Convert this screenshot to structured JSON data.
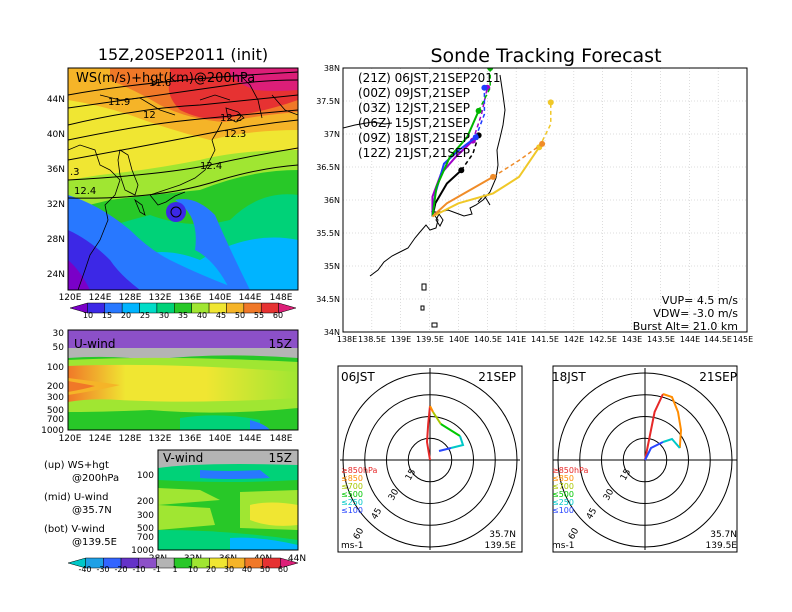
{
  "colors": {
    "ws_scale": [
      "#7a00c8",
      "#3c28e6",
      "#2878ff",
      "#00b4ff",
      "#00dcc8",
      "#00d278",
      "#28c828",
      "#a0e632",
      "#f0e632",
      "#f5b428",
      "#f07828",
      "#e63232",
      "#dc1e78"
    ],
    "u_scale": [
      "#00c8c8",
      "#1ea0e6",
      "#3264ff",
      "#6432c8",
      "#8c50c8",
      "#b4b4b4",
      "#28c828",
      "#a0e632",
      "#f0e632",
      "#f5b428",
      "#f07828",
      "#e63232",
      "#dc1e78"
    ],
    "wind_low": "#e62828",
    "wind_850": "#ff8c00",
    "wind_700": "#a8c800",
    "wind_500": "#00c800",
    "wind_250": "#00c8c8",
    "wind_100": "#2846ff"
  },
  "top_left": {
    "title": "15Z,20SEP2011 (init)",
    "label": "WS(m/s)+hgt(km)@200hPa",
    "contours": [
      "11.9",
      "11.6",
      "12",
      "12.2",
      "12.3",
      "12.4",
      "12.4",
      ".3"
    ],
    "lat_labels": [
      "44N",
      "40N",
      "36N",
      "32N",
      "28N",
      "24N"
    ],
    "lon_labels": [
      "120E",
      "124E",
      "128E",
      "132E",
      "136E",
      "140E",
      "144E",
      "148E"
    ],
    "colorbar_labels": [
      "10",
      "15",
      "20",
      "25",
      "30",
      "35",
      "40",
      "45",
      "50",
      "55",
      "60"
    ]
  },
  "mid_left": {
    "label": "U-wind",
    "time": "15Z",
    "y_labels": [
      "30",
      "50",
      "100",
      "200",
      "300",
      "500",
      "700",
      "1000"
    ],
    "x_labels": [
      "120E",
      "124E",
      "128E",
      "132E",
      "136E",
      "140E",
      "144E",
      "148E"
    ]
  },
  "bot_left": {
    "label": "V-wind",
    "time": "15Z",
    "y_labels": [
      "100",
      "200",
      "300",
      "500",
      "700",
      "1000"
    ],
    "x_labels": [
      "28N",
      "32N",
      "36N",
      "40N",
      "44N"
    ],
    "colorbar_labels": [
      "-40",
      "-30",
      "-20",
      "-10",
      "-1",
      "1",
      "10",
      "20",
      "30",
      "40",
      "50",
      "60"
    ]
  },
  "legend_text": {
    "l1": "(up) WS+hgt",
    "l2": "@200hPa",
    "l3": "(mid) U-wind",
    "l4": "@35.7N",
    "l5": "(bot) V-wind",
    "l6": "@139.5E"
  },
  "main": {
    "title": "Sonde Tracking Forecast",
    "legend": [
      {
        "text": "(21Z) 06JST,21SEP2011",
        "color": "#000000"
      },
      {
        "text": "(00Z) 09JST,21SEP",
        "color": "#a000c8"
      },
      {
        "text": "(03Z) 12JST,21SEP",
        "color": "#1e3cff"
      },
      {
        "text": "(06Z) 15JST,21SEP",
        "color": "#00b400"
      },
      {
        "text": "(09Z) 18JST,21SEP",
        "color": "#f0c828"
      },
      {
        "text": "(12Z) 21JST,21SEP",
        "color": "#f08c28"
      }
    ],
    "x_labels": [
      "138E",
      "138.5E",
      "139E",
      "139.5E",
      "140E",
      "140.5E",
      "141E",
      "141.5E",
      "142E",
      "142.5E",
      "143E",
      "143.5E",
      "144E",
      "144.5E",
      "145E"
    ],
    "y_labels": [
      "38N",
      "37.5N",
      "37N",
      "36.5N",
      "36N",
      "35.5N",
      "35N",
      "34.5N",
      "34N"
    ],
    "vup": "VUP= 4.5 m/s",
    "vdw": "VDW= -3.0 m/s",
    "burst": "Burst Alt= 21.0 km"
  },
  "chart_data": [
    {
      "type": "line",
      "title": "Sonde Tracking Forecast",
      "xlim": [
        138,
        145
      ],
      "ylim": [
        34,
        38
      ],
      "series": [
        {
          "name": "(21Z) 06JST,21SEP2011",
          "points": [
            [
              139.55,
              35.75
            ],
            [
              139.6,
              35.95
            ],
            [
              139.8,
              36.25
            ],
            [
              140.05,
              36.45
            ],
            [
              140.25,
              36.7
            ],
            [
              140.35,
              36.98
            ]
          ]
        },
        {
          "name": "(00Z) 09JST,21SEP",
          "points": [
            [
              139.55,
              35.75
            ],
            [
              139.55,
              36.05
            ],
            [
              139.7,
              36.4
            ],
            [
              139.95,
              36.65
            ],
            [
              140.25,
              36.9
            ],
            [
              140.4,
              37.3
            ],
            [
              140.5,
              37.7
            ]
          ]
        },
        {
          "name": "(03Z) 12JST,21SEP",
          "points": [
            [
              139.55,
              35.75
            ],
            [
              139.6,
              36.1
            ],
            [
              139.75,
              36.55
            ],
            [
              140.0,
              36.75
            ],
            [
              140.3,
              36.95
            ],
            [
              140.45,
              37.3
            ],
            [
              140.45,
              37.7
            ]
          ]
        },
        {
          "name": "(06Z) 15JST,21SEP",
          "points": [
            [
              139.55,
              35.75
            ],
            [
              139.62,
              36.2
            ],
            [
              139.85,
              36.65
            ],
            [
              140.15,
              36.95
            ],
            [
              140.35,
              37.35
            ],
            [
              140.55,
              37.7
            ],
            [
              140.55,
              38.0
            ]
          ]
        },
        {
          "name": "(09Z) 18JST,21SEP",
          "points": [
            [
              139.55,
              35.75
            ],
            [
              140.0,
              35.95
            ],
            [
              140.6,
              36.1
            ],
            [
              141.05,
              36.35
            ],
            [
              141.4,
              36.8
            ],
            [
              141.6,
              37.15
            ],
            [
              141.6,
              37.48
            ]
          ]
        },
        {
          "name": "(12Z) 21JST,21SEP",
          "points": [
            [
              139.55,
              35.75
            ],
            [
              139.8,
              35.95
            ],
            [
              140.1,
              36.1
            ],
            [
              140.6,
              36.35
            ],
            [
              141.05,
              36.6
            ],
            [
              141.45,
              36.85
            ]
          ]
        }
      ]
    },
    {
      "type": "line",
      "title": "06JST 21SEP",
      "series": [
        {
          "name": "≥850hPa",
          "points": [
            [
              0,
              0
            ],
            [
              -0.5,
              3
            ],
            [
              -0.3,
              6
            ],
            [
              0,
              9
            ]
          ]
        },
        {
          "name": "≤850",
          "points": [
            [
              0,
              9
            ],
            [
              0.5,
              8
            ]
          ]
        },
        {
          "name": "≤700",
          "points": [
            [
              0.5,
              8
            ],
            [
              1.8,
              6
            ]
          ]
        },
        {
          "name": "≤500",
          "points": [
            [
              1.8,
              6
            ],
            [
              5,
              4
            ]
          ]
        },
        {
          "name": "≤250",
          "points": [
            [
              5,
              4
            ],
            [
              5.5,
              2.5
            ],
            [
              3.5,
              2
            ]
          ]
        },
        {
          "name": "≤100",
          "points": [
            [
              3.5,
              2
            ],
            [
              1.5,
              1.5
            ]
          ]
        }
      ]
    },
    {
      "type": "line",
      "title": "18JST 21SEP",
      "series": [
        {
          "name": "≥850hPa",
          "points": [
            [
              0,
              0
            ],
            [
              1,
              5
            ],
            [
              1.6,
              8
            ],
            [
              3,
              11
            ]
          ]
        },
        {
          "name": "≤850",
          "points": [
            [
              3,
              11
            ],
            [
              4.5,
              10.5
            ],
            [
              5.5,
              8
            ],
            [
              6,
              5
            ],
            [
              5.8,
              2
            ]
          ]
        },
        {
          "name": "≤250",
          "points": [
            [
              5.8,
              2
            ],
            [
              4.5,
              3.5
            ],
            [
              3,
              3
            ]
          ]
        },
        {
          "name": "≤100",
          "points": [
            [
              3,
              3
            ],
            [
              1,
              2
            ],
            [
              0,
              0
            ]
          ]
        }
      ]
    }
  ],
  "hodo": {
    "left": {
      "time": "06JST",
      "date": "21SEP"
    },
    "right": {
      "time": "18JST",
      "date": "21SEP"
    },
    "levels": [
      "≥850hPa",
      "≤850",
      "≤700",
      "≤500",
      "≤250",
      "≤100"
    ],
    "rings": [
      "15",
      "30",
      "45",
      "60"
    ],
    "units": "ms-1",
    "lat": "35.7N",
    "lon": "139.5E"
  }
}
